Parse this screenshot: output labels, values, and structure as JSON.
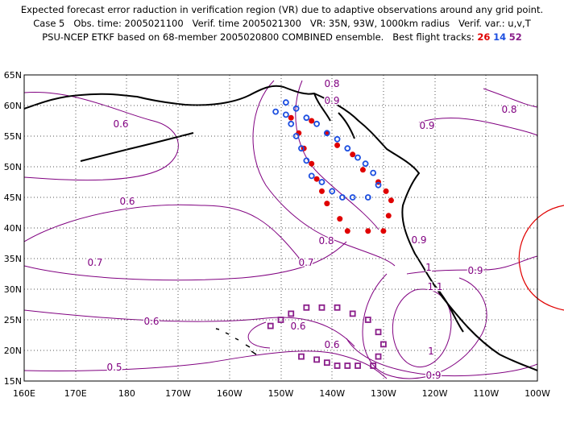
{
  "title": {
    "line1": "Expected forecast error raduction in verification region (VR) due to adaptive observations around any grid point.",
    "line2": "Case 5   Obs. time: 2005021100   Verif. time 2005021300   VR: 35N, 93W, 1000km radius   Verif. var.: u,v,T",
    "line3_prefix": "PSU-NCEP ETKF based on 68-member 2005020800 COMBINED ensemble.   Best flight tracks:",
    "track_red": "26",
    "track_blue": "14",
    "track_purple": "52"
  },
  "map": {
    "lon_labels": [
      "160E",
      "170E",
      "180",
      "170W",
      "160W",
      "150W",
      "140W",
      "130W",
      "120W",
      "110W",
      "100W"
    ],
    "lat_labels": [
      "65N",
      "60N",
      "55N",
      "50N",
      "45N",
      "40N",
      "35N",
      "30N",
      "25N",
      "20N",
      "15N"
    ],
    "contour_labels": [
      "0.8",
      "0.9",
      "0.8",
      "0.6",
      "0.6",
      "0.9",
      "0.8",
      "0.7",
      "0.7",
      "0.6",
      "0.6",
      "0.5",
      "0.6",
      "0.9",
      "1",
      "1.1",
      "1",
      "0.9",
      "0.9"
    ],
    "colors": {
      "contour": "#800080",
      "coast": "#000000",
      "grid": "#555555",
      "track_red": "#e00000",
      "track_blue": "#1d4fe0",
      "track_purple": "#8a1e8a",
      "verification_circle": "#e00000"
    },
    "tracks": {
      "red": [
        [
          -148,
          58
        ],
        [
          -146.5,
          55.5
        ],
        [
          -145.5,
          53
        ],
        [
          -144,
          50.5
        ],
        [
          -143,
          48
        ],
        [
          -142,
          46
        ],
        [
          -141,
          44
        ],
        [
          -144,
          57.5
        ],
        [
          -141,
          55.5
        ],
        [
          -139,
          53.5
        ],
        [
          -136,
          52
        ],
        [
          -134,
          49.5
        ],
        [
          -131,
          47.5
        ],
        [
          -129.5,
          46
        ],
        [
          -128.5,
          44.5
        ],
        [
          -129,
          42
        ],
        [
          -130,
          39.5
        ],
        [
          -133,
          39.5
        ],
        [
          -137,
          39.5
        ],
        [
          -138.5,
          41.5
        ]
      ],
      "blue": [
        [
          -151,
          59
        ],
        [
          -149,
          60.5
        ],
        [
          -147,
          59.5
        ],
        [
          -145,
          58
        ],
        [
          -143,
          57
        ],
        [
          -141,
          55.5
        ],
        [
          -139,
          54.5
        ],
        [
          -137,
          53
        ],
        [
          -135,
          51.5
        ],
        [
          -133.5,
          50.5
        ],
        [
          -132,
          49
        ],
        [
          -131,
          47
        ],
        [
          -133,
          45
        ],
        [
          -136,
          45
        ],
        [
          -138,
          45
        ],
        [
          -140,
          46
        ],
        [
          -142,
          47.5
        ],
        [
          -144,
          48.5
        ],
        [
          -145,
          51
        ],
        [
          -146,
          53
        ],
        [
          -147,
          55
        ],
        [
          -148,
          57
        ],
        [
          -149,
          58.5
        ]
      ],
      "purple": [
        [
          -152,
          24
        ],
        [
          -150,
          25
        ],
        [
          -148,
          26
        ],
        [
          -145,
          27
        ],
        [
          -142,
          27
        ],
        [
          -139,
          27
        ],
        [
          -136,
          26
        ],
        [
          -133,
          25
        ],
        [
          -131,
          23
        ],
        [
          -130,
          21
        ],
        [
          -131,
          19
        ],
        [
          -132,
          17.5
        ],
        [
          -135,
          17.5
        ],
        [
          -137,
          17.5
        ],
        [
          -139,
          17.5
        ],
        [
          -141,
          18
        ],
        [
          -143,
          18.5
        ],
        [
          -146,
          19
        ]
      ]
    }
  }
}
